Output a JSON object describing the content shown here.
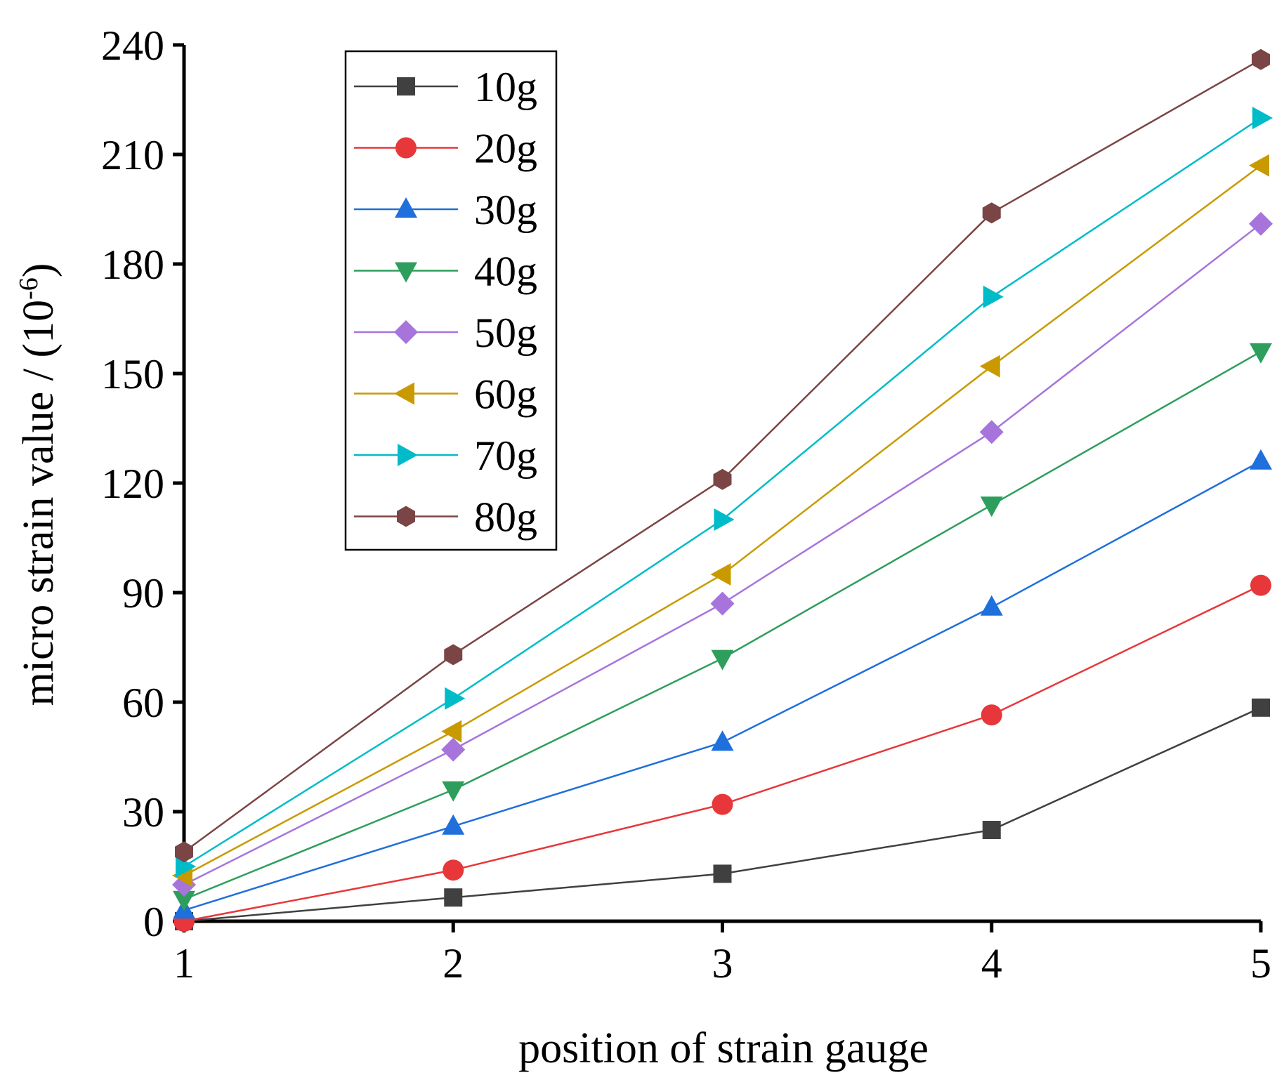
{
  "chart_data": {
    "type": "line",
    "title": "",
    "xlabel": "position of strain gauge",
    "ylabel": "micro strain value / (10",
    "ylabel_exponent": "-6",
    "ylabel_close": ")",
    "x": [
      1,
      2,
      3,
      4,
      5
    ],
    "xlim": [
      1,
      5
    ],
    "ylim": [
      0,
      240
    ],
    "xticks": [
      1,
      2,
      3,
      4,
      5
    ],
    "yticks": [
      0,
      30,
      60,
      90,
      120,
      150,
      180,
      210,
      240
    ],
    "grid": false,
    "legend_position": "top-left",
    "series": [
      {
        "name": "10g",
        "color": "#404040",
        "marker": "square",
        "values": [
          0,
          6.5,
          13,
          25,
          58.5
        ]
      },
      {
        "name": "20g",
        "color": "#e8373a",
        "marker": "circle",
        "values": [
          0,
          14,
          32,
          56.5,
          92
        ]
      },
      {
        "name": "30g",
        "color": "#1f6fdc",
        "marker": "triangle-up",
        "values": [
          3,
          26,
          49,
          86,
          126
        ]
      },
      {
        "name": "40g",
        "color": "#2e9e5c",
        "marker": "triangle-down",
        "values": [
          6,
          36,
          72,
          114,
          156
        ]
      },
      {
        "name": "50g",
        "color": "#a774dc",
        "marker": "diamond",
        "values": [
          10,
          47,
          87,
          134,
          191
        ]
      },
      {
        "name": "60g",
        "color": "#c99a00",
        "marker": "triangle-left",
        "values": [
          12.5,
          52,
          95,
          152,
          207
        ]
      },
      {
        "name": "70g",
        "color": "#00bcc8",
        "marker": "triangle-right",
        "values": [
          15,
          61,
          110,
          171,
          220
        ]
      },
      {
        "name": "80g",
        "color": "#7b4545",
        "marker": "hexagon",
        "values": [
          19,
          73,
          121,
          194,
          236
        ]
      }
    ]
  }
}
